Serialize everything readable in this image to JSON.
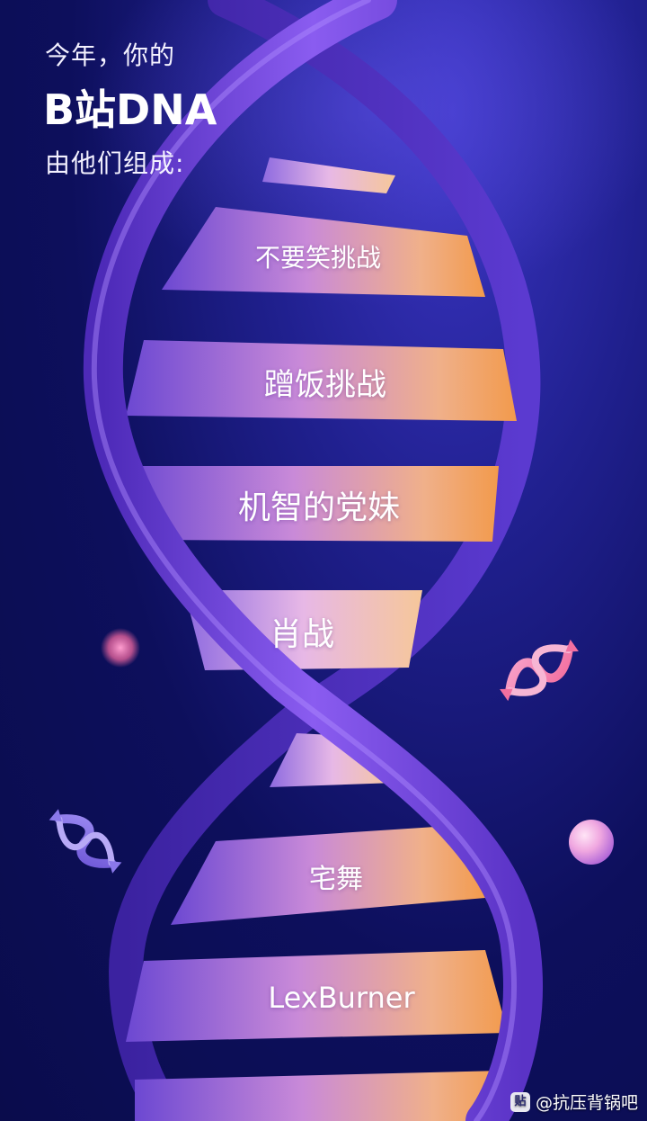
{
  "header": {
    "line1": "今年，你的",
    "line2": "B站DNA",
    "line3": "由他们组成:"
  },
  "rungs": [
    {
      "label": "不要笑挑战"
    },
    {
      "label": "蹭饭挑战"
    },
    {
      "label": "机智的党妹"
    },
    {
      "label": "肖战"
    },
    {
      "label": "宅舞"
    },
    {
      "label": "LexBurner"
    }
  ],
  "watermark": {
    "logo_text": "贴",
    "text": "@抗压背锅吧"
  },
  "colors": {
    "background": "#0d0f5c",
    "helix_strand": "#6a3fd6",
    "rung_left": "#7a52d8",
    "rung_mid": "#e6a0dc",
    "rung_right": "#f0a85a"
  }
}
